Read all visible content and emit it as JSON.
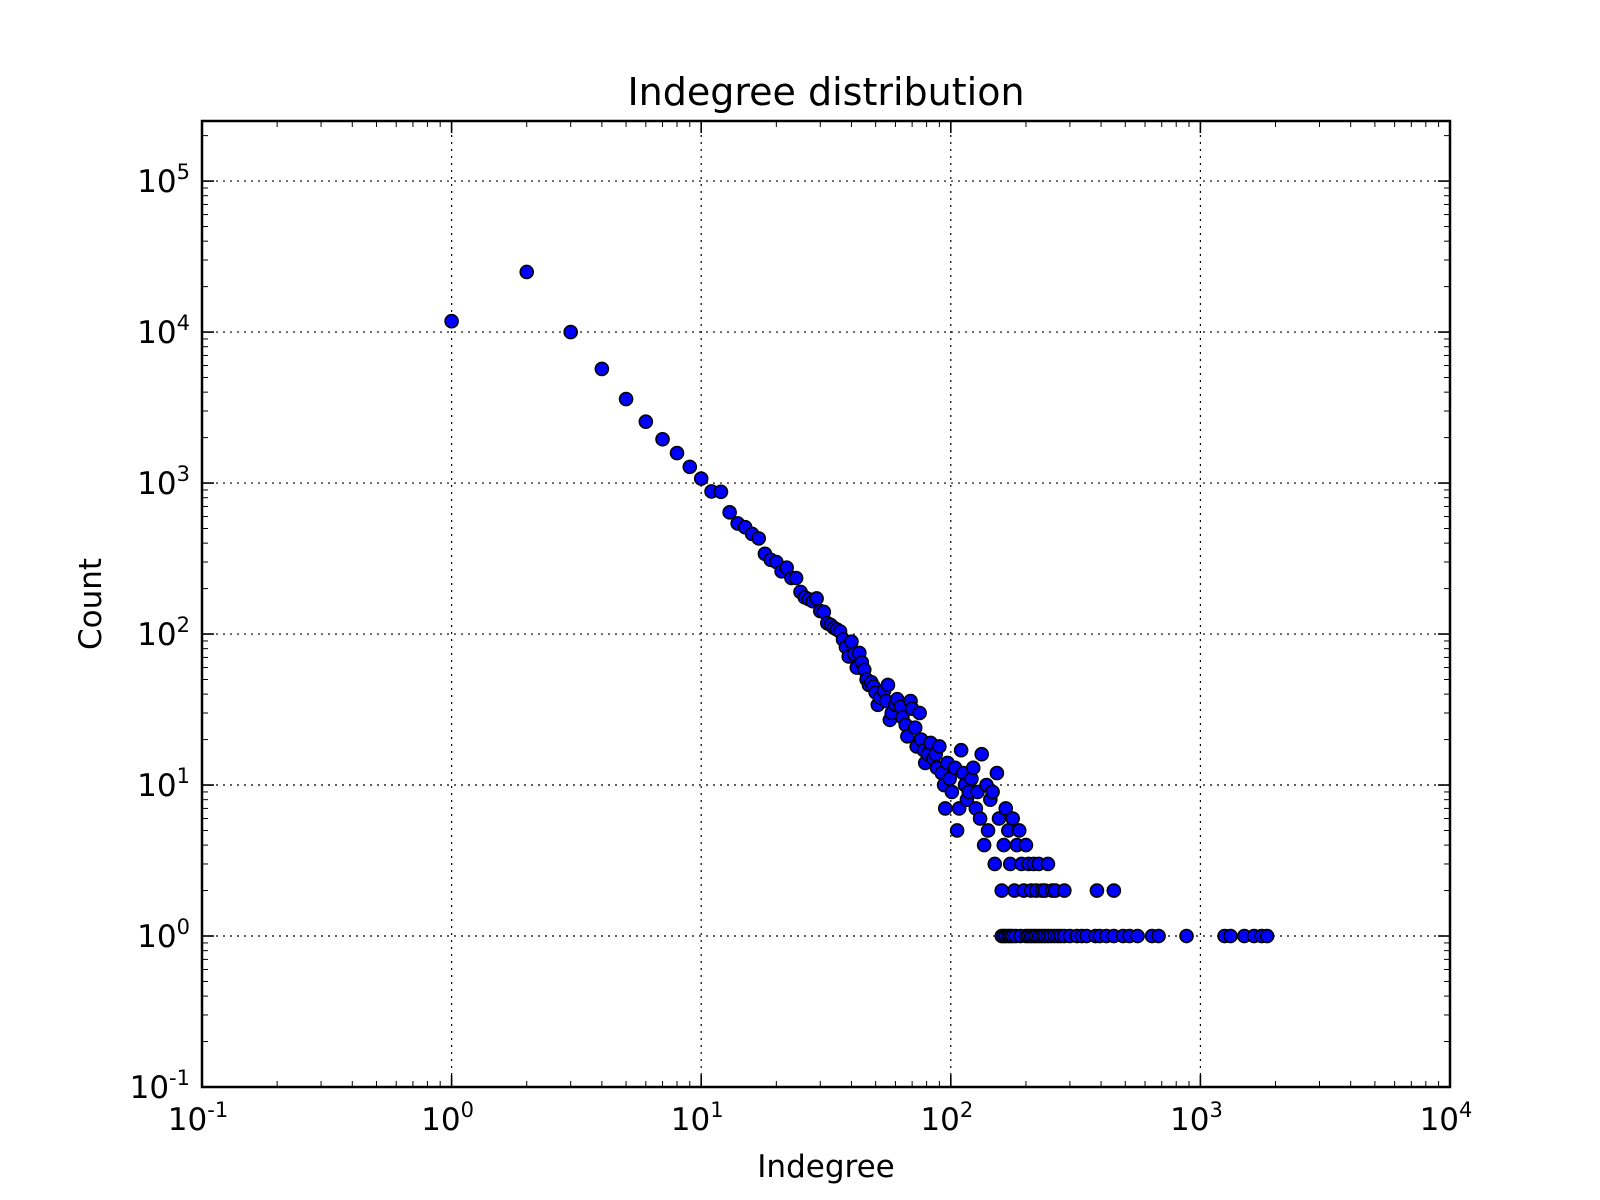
{
  "chart_data": {
    "type": "scatter",
    "title": "Indegree distribution",
    "xlabel": "Indegree",
    "ylabel": "Count",
    "xscale": "log",
    "yscale": "log",
    "xlim": [
      0.1,
      10000
    ],
    "ylim": [
      0.1,
      250000
    ],
    "grid": true,
    "legend": "none",
    "marker_color": "#0000ff",
    "marker_edge_color": "#000000",
    "x_ticks": [
      {
        "base": "10",
        "exp": "-1",
        "value": 0.1
      },
      {
        "base": "10",
        "exp": "0",
        "value": 1
      },
      {
        "base": "10",
        "exp": "1",
        "value": 10
      },
      {
        "base": "10",
        "exp": "2",
        "value": 100
      },
      {
        "base": "10",
        "exp": "3",
        "value": 1000
      },
      {
        "base": "10",
        "exp": "4",
        "value": 10000
      }
    ],
    "y_ticks": [
      {
        "base": "10",
        "exp": "-1",
        "value": 0.1
      },
      {
        "base": "10",
        "exp": "0",
        "value": 1
      },
      {
        "base": "10",
        "exp": "1",
        "value": 10
      },
      {
        "base": "10",
        "exp": "2",
        "value": 100
      },
      {
        "base": "10",
        "exp": "3",
        "value": 1000
      },
      {
        "base": "10",
        "exp": "4",
        "value": 10000
      },
      {
        "base": "10",
        "exp": "5",
        "value": 100000
      }
    ],
    "points": [
      [
        1,
        11800
      ],
      [
        2,
        25000
      ],
      [
        3,
        10000
      ],
      [
        4,
        5700
      ],
      [
        5,
        3600
      ],
      [
        6,
        2550
      ],
      [
        7,
        1950
      ],
      [
        8,
        1580
      ],
      [
        9,
        1280
      ],
      [
        10,
        1070
      ],
      [
        11,
        880
      ],
      [
        12,
        875
      ],
      [
        13,
        640
      ],
      [
        14,
        540
      ],
      [
        15,
        510
      ],
      [
        16,
        460
      ],
      [
        17,
        430
      ],
      [
        18,
        340
      ],
      [
        19,
        310
      ],
      [
        20,
        300
      ],
      [
        21,
        260
      ],
      [
        22,
        275
      ],
      [
        23,
        235
      ],
      [
        24,
        235
      ],
      [
        25,
        190
      ],
      [
        26,
        175
      ],
      [
        27,
        170
      ],
      [
        28,
        165
      ],
      [
        29,
        172
      ],
      [
        30,
        142
      ],
      [
        31,
        140
      ],
      [
        32,
        118
      ],
      [
        33,
        115
      ],
      [
        34,
        110
      ],
      [
        35,
        107
      ],
      [
        36,
        104
      ],
      [
        37,
        92
      ],
      [
        38,
        82
      ],
      [
        39,
        71
      ],
      [
        40,
        89
      ],
      [
        41,
        74
      ],
      [
        42,
        60
      ],
      [
        43,
        75
      ],
      [
        44,
        65
      ],
      [
        45,
        58
      ],
      [
        46,
        50
      ],
      [
        47,
        46
      ],
      [
        48,
        48
      ],
      [
        49,
        45
      ],
      [
        50,
        41
      ],
      [
        51,
        34
      ],
      [
        52,
        38
      ],
      [
        54,
        42
      ],
      [
        55,
        36
      ],
      [
        56,
        46
      ],
      [
        57,
        27
      ],
      [
        58,
        30
      ],
      [
        60,
        34
      ],
      [
        61,
        37
      ],
      [
        63,
        33
      ],
      [
        64,
        28
      ],
      [
        66,
        25
      ],
      [
        67,
        21
      ],
      [
        69,
        36
      ],
      [
        70,
        32
      ],
      [
        72,
        24
      ],
      [
        73,
        18
      ],
      [
        75,
        30
      ],
      [
        76,
        20
      ],
      [
        78,
        17
      ],
      [
        79,
        14
      ],
      [
        81,
        16
      ],
      [
        83,
        19
      ],
      [
        85,
        15
      ],
      [
        87,
        16
      ],
      [
        88,
        13
      ],
      [
        90,
        18
      ],
      [
        92,
        12
      ],
      [
        94,
        10
      ],
      [
        95,
        7
      ],
      [
        97,
        14
      ],
      [
        99,
        11
      ],
      [
        101,
        9
      ],
      [
        104,
        13
      ],
      [
        106,
        5
      ],
      [
        108,
        7
      ],
      [
        110,
        17
      ],
      [
        112,
        12
      ],
      [
        114,
        10
      ],
      [
        116,
        8
      ],
      [
        118,
        9
      ],
      [
        121,
        11
      ],
      [
        123,
        13
      ],
      [
        126,
        7
      ],
      [
        128,
        9
      ],
      [
        131,
        6
      ],
      [
        133,
        16
      ],
      [
        136,
        4
      ],
      [
        139,
        10
      ],
      [
        141,
        5
      ],
      [
        144,
        8
      ],
      [
        147,
        9
      ],
      [
        150,
        3
      ],
      [
        153,
        12
      ],
      [
        156,
        6
      ],
      [
        160,
        2
      ],
      [
        163,
        4
      ],
      [
        166,
        7
      ],
      [
        170,
        5
      ],
      [
        173,
        3
      ],
      [
        177,
        6
      ],
      [
        180,
        2
      ],
      [
        184,
        4
      ],
      [
        188,
        5
      ],
      [
        192,
        3
      ],
      [
        196,
        2
      ],
      [
        200,
        4
      ],
      [
        205,
        3
      ],
      [
        210,
        2
      ],
      [
        215,
        3
      ],
      [
        220,
        2
      ],
      [
        225,
        3
      ],
      [
        232,
        2
      ],
      [
        238,
        2
      ],
      [
        245,
        3
      ],
      [
        255,
        2
      ],
      [
        262,
        2
      ],
      [
        285,
        2
      ],
      [
        385,
        2
      ],
      [
        450,
        2
      ],
      [
        160,
        1
      ],
      [
        163,
        1
      ],
      [
        166,
        1
      ],
      [
        170,
        1
      ],
      [
        173,
        1
      ],
      [
        177,
        1
      ],
      [
        182,
        1
      ],
      [
        190,
        1
      ],
      [
        200,
        1
      ],
      [
        205,
        1
      ],
      [
        210,
        1
      ],
      [
        215,
        1
      ],
      [
        220,
        1
      ],
      [
        226,
        1
      ],
      [
        232,
        1
      ],
      [
        238,
        1
      ],
      [
        245,
        1
      ],
      [
        252,
        1
      ],
      [
        260,
        1
      ],
      [
        268,
        1
      ],
      [
        276,
        1
      ],
      [
        285,
        1
      ],
      [
        300,
        1
      ],
      [
        320,
        1
      ],
      [
        335,
        1
      ],
      [
        350,
        1
      ],
      [
        380,
        1
      ],
      [
        395,
        1
      ],
      [
        420,
        1
      ],
      [
        450,
        1
      ],
      [
        490,
        1
      ],
      [
        520,
        1
      ],
      [
        560,
        1
      ],
      [
        640,
        1
      ],
      [
        680,
        1
      ],
      [
        880,
        1
      ],
      [
        1250,
        1
      ],
      [
        1320,
        1
      ],
      [
        1500,
        1
      ],
      [
        1640,
        1
      ],
      [
        1760,
        1
      ],
      [
        1850,
        1
      ]
    ]
  }
}
